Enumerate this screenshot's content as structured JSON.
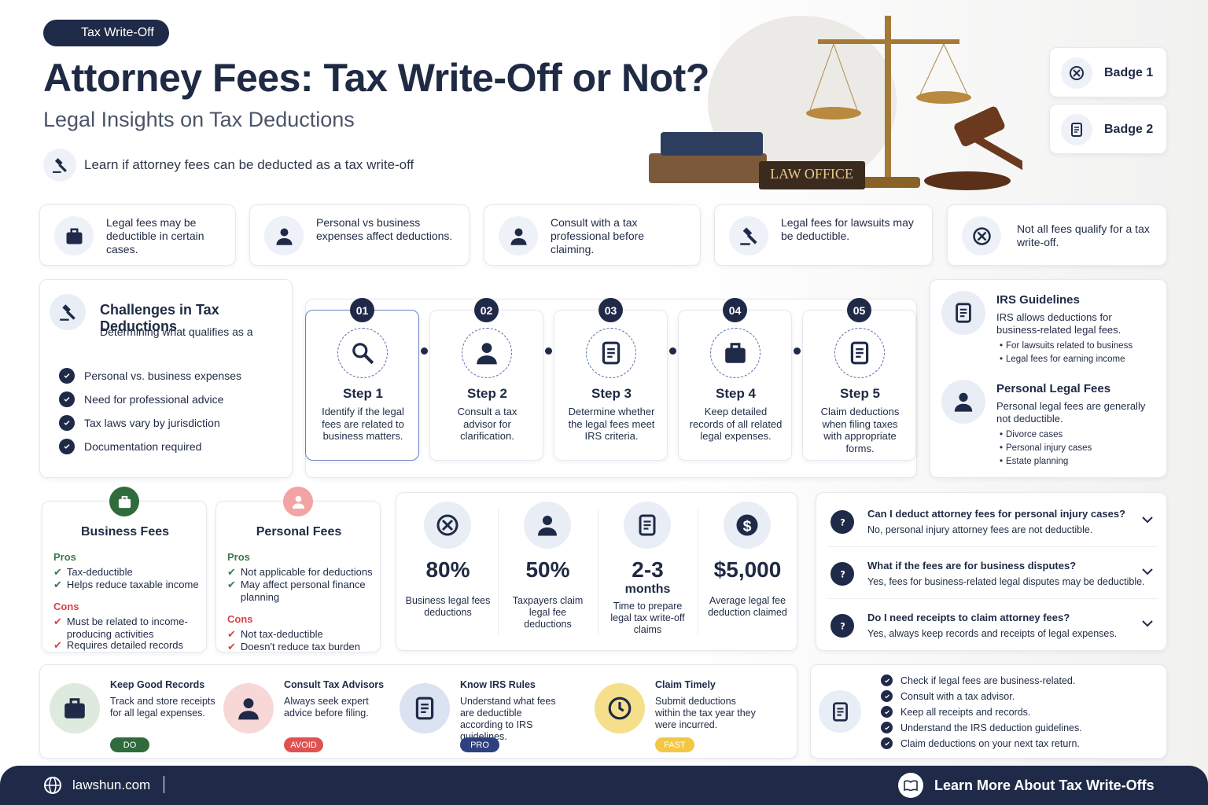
{
  "header": {
    "tag": "Tax Write-Off",
    "title": "Attorney Fees: Tax Write-Off or Not?",
    "subtitle": "Legal Insights on Tax Deductions",
    "intro": "Learn if attorney fees can be deducted as a tax write-off",
    "sign": "LAW OFFICE",
    "badges": [
      "Badge 1",
      "Badge 2"
    ]
  },
  "facts": [
    "Legal fees may be deductible in certain cases.",
    "Personal vs business expenses affect deductions.",
    "Consult with a tax professional before claiming.",
    "Legal fees for lawsuits may be deductible.",
    "Not all fees qualify for a tax write-off."
  ],
  "challenges": {
    "title": "Challenges in Tax Deductions",
    "lead": "Determining what qualifies as a",
    "items": [
      "Personal vs. business expenses",
      "Need for professional advice",
      "Tax laws vary by jurisdiction",
      "Documentation required"
    ]
  },
  "steps": [
    {
      "num": "01",
      "title": "Step 1",
      "text": "Identify if the legal fees are related to business matters."
    },
    {
      "num": "02",
      "title": "Step 2",
      "text": "Consult a tax advisor for clarification."
    },
    {
      "num": "03",
      "title": "Step 3",
      "text": "Determine whether the legal fees meet IRS criteria."
    },
    {
      "num": "04",
      "title": "Step 4",
      "text": "Keep detailed records of all related legal expenses."
    },
    {
      "num": "05",
      "title": "Step 5",
      "text": "Claim deductions when filing taxes with appropriate forms."
    }
  ],
  "guides": [
    {
      "title": "IRS Guidelines",
      "text": "IRS allows deductions for business-related legal fees.",
      "items": [
        "For lawsuits related to business",
        "Legal fees for earning income"
      ]
    },
    {
      "title": "Personal Legal Fees",
      "text": "Personal legal fees are generally not deductible.",
      "items": [
        "Divorce cases",
        "Personal injury cases",
        "Estate planning"
      ]
    }
  ],
  "comparison": [
    {
      "title": "Business Fees",
      "pros_label": "Pros",
      "pros": [
        "Tax-deductible",
        "Helps reduce taxable income"
      ],
      "cons_label": "Cons",
      "cons": [
        "Must be related to income-producing activities",
        "Requires detailed records"
      ]
    },
    {
      "title": "Personal Fees",
      "pros_label": "Pros",
      "pros": [
        "Not applicable for deductions",
        "May affect personal finance planning"
      ],
      "cons_label": "Cons",
      "cons": [
        "Not tax-deductible",
        "Doesn't reduce tax burden"
      ]
    }
  ],
  "stats": [
    {
      "value": "80%",
      "label": "Business legal fees deductions"
    },
    {
      "value": "50%",
      "label": "Taxpayers claim legal fee deductions"
    },
    {
      "value": "2-3",
      "unit": "months",
      "label": "Time to prepare legal tax write-off claims"
    },
    {
      "value": "$5,000",
      "label": "Average legal fee deduction claimed"
    }
  ],
  "faq": [
    {
      "q": "Can I deduct attorney fees for personal injury cases?",
      "a": "No, personal injury attorney fees are not deductible."
    },
    {
      "q": "What if the fees are for business disputes?",
      "a": "Yes, fees for business-related legal disputes may be deductible."
    },
    {
      "q": "Do I need receipts to claim attorney fees?",
      "a": "Yes, always keep records and receipts of legal expenses."
    }
  ],
  "tips": [
    {
      "title": "Keep Good Records",
      "text": "Track and store receipts for all legal expenses.",
      "tag": "DO"
    },
    {
      "title": "Consult Tax Advisors",
      "text": "Always seek expert advice before filing.",
      "tag": "AVOID"
    },
    {
      "title": "Know IRS Rules",
      "text": "Understand what fees are deductible according to IRS guidelines.",
      "tag": "PRO"
    },
    {
      "title": "Claim Timely",
      "text": "Submit deductions within the tax year they were incurred.",
      "tag": "FAST"
    }
  ],
  "checklist": [
    "Check if legal fees are business-related.",
    "Consult with a tax advisor.",
    "Keep all receipts and records.",
    "Understand the IRS deduction guidelines.",
    "Claim deductions on your next tax return."
  ],
  "footer": {
    "site": "lawshun.com",
    "cta": "Learn More About Tax Write-Offs"
  }
}
